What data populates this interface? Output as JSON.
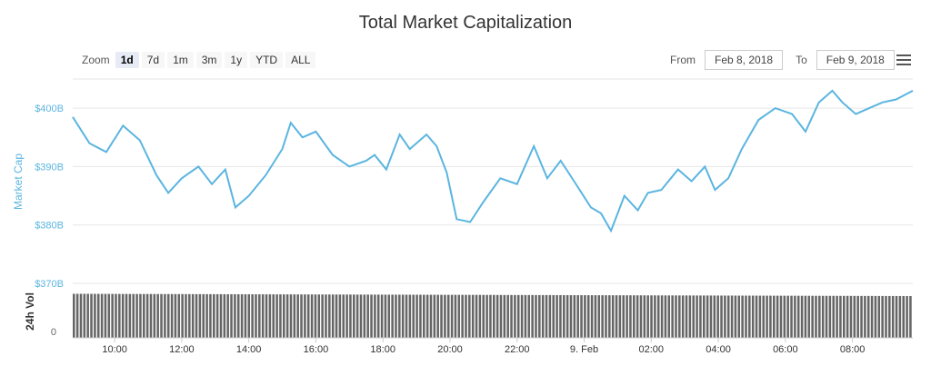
{
  "title": "Total Market Capitalization",
  "zoom": {
    "label": "Zoom",
    "buttons": [
      "1d",
      "7d",
      "1m",
      "3m",
      "1y",
      "YTD",
      "ALL"
    ],
    "active": "1d"
  },
  "range": {
    "from_label": "From",
    "from_value": "Feb 8, 2018",
    "to_label": "To",
    "to_value": "Feb 9, 2018"
  },
  "menu_icon": "hamburger-menu-icon",
  "colors": {
    "line": "#5bb5e0",
    "volume": "#666666",
    "axis_text": "#5bb5e0",
    "grid": "#e6e6e6"
  },
  "chart_data": [
    {
      "type": "line",
      "title": "",
      "ylabel": "Market Cap",
      "ylim": [
        370,
        405
      ],
      "y_ticks": [
        370,
        380,
        390,
        400
      ],
      "y_tick_labels": [
        "$370B",
        "$380B",
        "$390B",
        "$400B"
      ],
      "x_range_hours": [
        8.75,
        33.8
      ],
      "x_ticks": [
        10,
        12,
        14,
        16,
        18,
        20,
        22,
        24,
        26,
        28,
        30,
        32
      ],
      "x_tick_labels": [
        "10:00",
        "12:00",
        "14:00",
        "16:00",
        "18:00",
        "20:00",
        "22:00",
        "9. Feb",
        "02:00",
        "04:00",
        "06:00",
        "08:00"
      ],
      "grid": true,
      "series": [
        {
          "x": [
            8.75,
            9.25,
            9.75,
            10.25,
            10.75,
            11.25,
            11.6,
            12.0,
            12.5,
            12.9,
            13.3,
            13.6,
            14.0,
            14.5,
            15.0,
            15.25,
            15.6,
            16.0,
            16.5,
            17.0,
            17.5,
            17.75,
            18.1,
            18.5,
            18.8,
            19.3,
            19.6,
            19.9,
            20.2,
            20.6,
            21.0,
            21.5,
            22.0,
            22.5,
            22.9,
            23.3,
            23.7,
            24.2,
            24.5,
            24.8,
            25.2,
            25.6,
            25.9,
            26.3,
            26.8,
            27.2,
            27.6,
            27.9,
            28.3,
            28.7,
            29.2,
            29.7,
            30.2,
            30.6,
            31.0,
            31.4,
            31.7,
            32.1,
            32.5,
            32.9,
            33.3,
            33.8
          ],
          "y": [
            398.5,
            394,
            392.5,
            397,
            394.5,
            388.5,
            385.5,
            388,
            390,
            387,
            389.5,
            383,
            385,
            388.5,
            393,
            397.5,
            395,
            396,
            392,
            390,
            391,
            392,
            389.5,
            395.5,
            393,
            395.5,
            393.5,
            389,
            381,
            380.5,
            384,
            388,
            387,
            393.5,
            388,
            391,
            387.5,
            383,
            382,
            379,
            385,
            382.5,
            385.5,
            386,
            389.5,
            387.5,
            390,
            386,
            388,
            393,
            398,
            400,
            399,
            396,
            401,
            403,
            401,
            399,
            400,
            401,
            401.5,
            403
          ]
        }
      ]
    },
    {
      "type": "bar",
      "title": "",
      "ylabel": "24h Vol",
      "y_tick_labels": [
        "0"
      ],
      "bar_count": 240,
      "relative_start": 0.97,
      "relative_end": 0.92
    }
  ]
}
